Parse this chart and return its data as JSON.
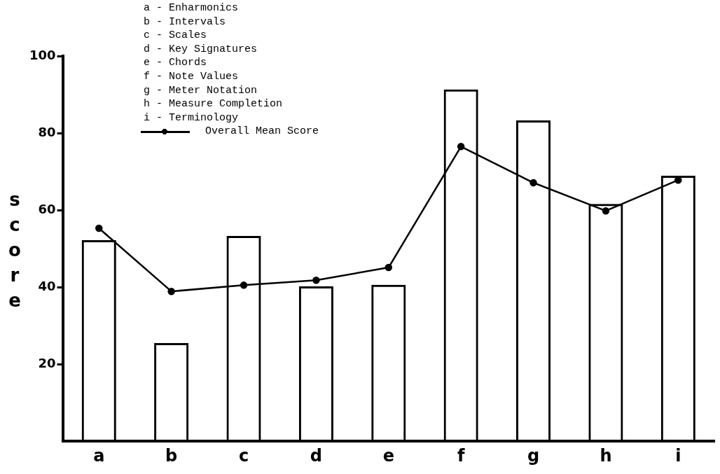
{
  "chart_data": {
    "type": "bar",
    "ylabel": "score",
    "categories": [
      "a",
      "b",
      "c",
      "d",
      "e",
      "f",
      "g",
      "h",
      "i"
    ],
    "series": [
      {
        "color": "#000000",
        "values": [
          52.2,
          25.5,
          53.3,
          40.2,
          40.6,
          91.3,
          83.3,
          61.6,
          68.9
        ]
      },
      {
        "type": "line",
        "name": "Overall Mean Score",
        "color": "#000000",
        "values": [
          55.3,
          38.9,
          40.5,
          41.8,
          45.1,
          76.5,
          67.1,
          59.8,
          67.8
        ]
      }
    ],
    "annotations": [
      "a - Enharmonics",
      "b - Intervals",
      "c - Scales",
      "d - Key Signatures",
      "e - Chords",
      "f - Note Values",
      "g - Meter Notation",
      "h - Measure Completion",
      "i - Terminology"
    ],
    "ylim": [
      0,
      100
    ],
    "yticks": [
      20,
      40,
      60,
      80,
      100
    ],
    "grid": false,
    "legend": "top",
    "marker": "circle",
    "line_style": "solid"
  }
}
